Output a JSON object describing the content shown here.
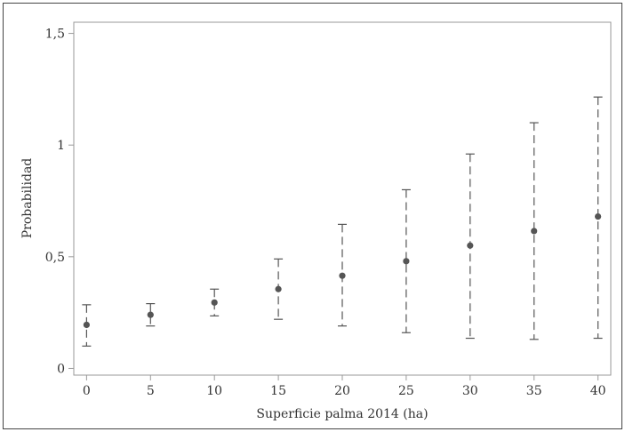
{
  "chart_data": {
    "type": "scatter",
    "title": "",
    "xlabel": "Superficie palma 2014 (ha)",
    "ylabel": "Probabilidad",
    "xlim": [
      -1,
      41
    ],
    "ylim": [
      -0.03,
      1.55
    ],
    "x_ticks": [
      0,
      5,
      10,
      15,
      20,
      25,
      30,
      35,
      40
    ],
    "x_tick_labels": [
      "0",
      "5",
      "10",
      "15",
      "20",
      "25",
      "30",
      "35",
      "40"
    ],
    "y_ticks": [
      0,
      0.5,
      1,
      1.5
    ],
    "y_tick_labels": [
      "0",
      "0,5",
      "1",
      "1,5"
    ],
    "grid": false,
    "legend": "none",
    "series": [
      {
        "x": [
          0,
          5,
          10,
          15,
          20,
          25,
          30,
          35,
          40
        ],
        "values": [
          0.195,
          0.24,
          0.295,
          0.355,
          0.415,
          0.48,
          0.55,
          0.615,
          0.68
        ],
        "lower": [
          0.1,
          0.19,
          0.235,
          0.22,
          0.19,
          0.16,
          0.135,
          0.13,
          0.135
        ],
        "upper": [
          0.285,
          0.29,
          0.355,
          0.49,
          0.645,
          0.8,
          0.96,
          1.1,
          1.215
        ]
      }
    ],
    "point_color": "#555555",
    "errorbar_color": "#555555",
    "axis_color": "#999999"
  }
}
